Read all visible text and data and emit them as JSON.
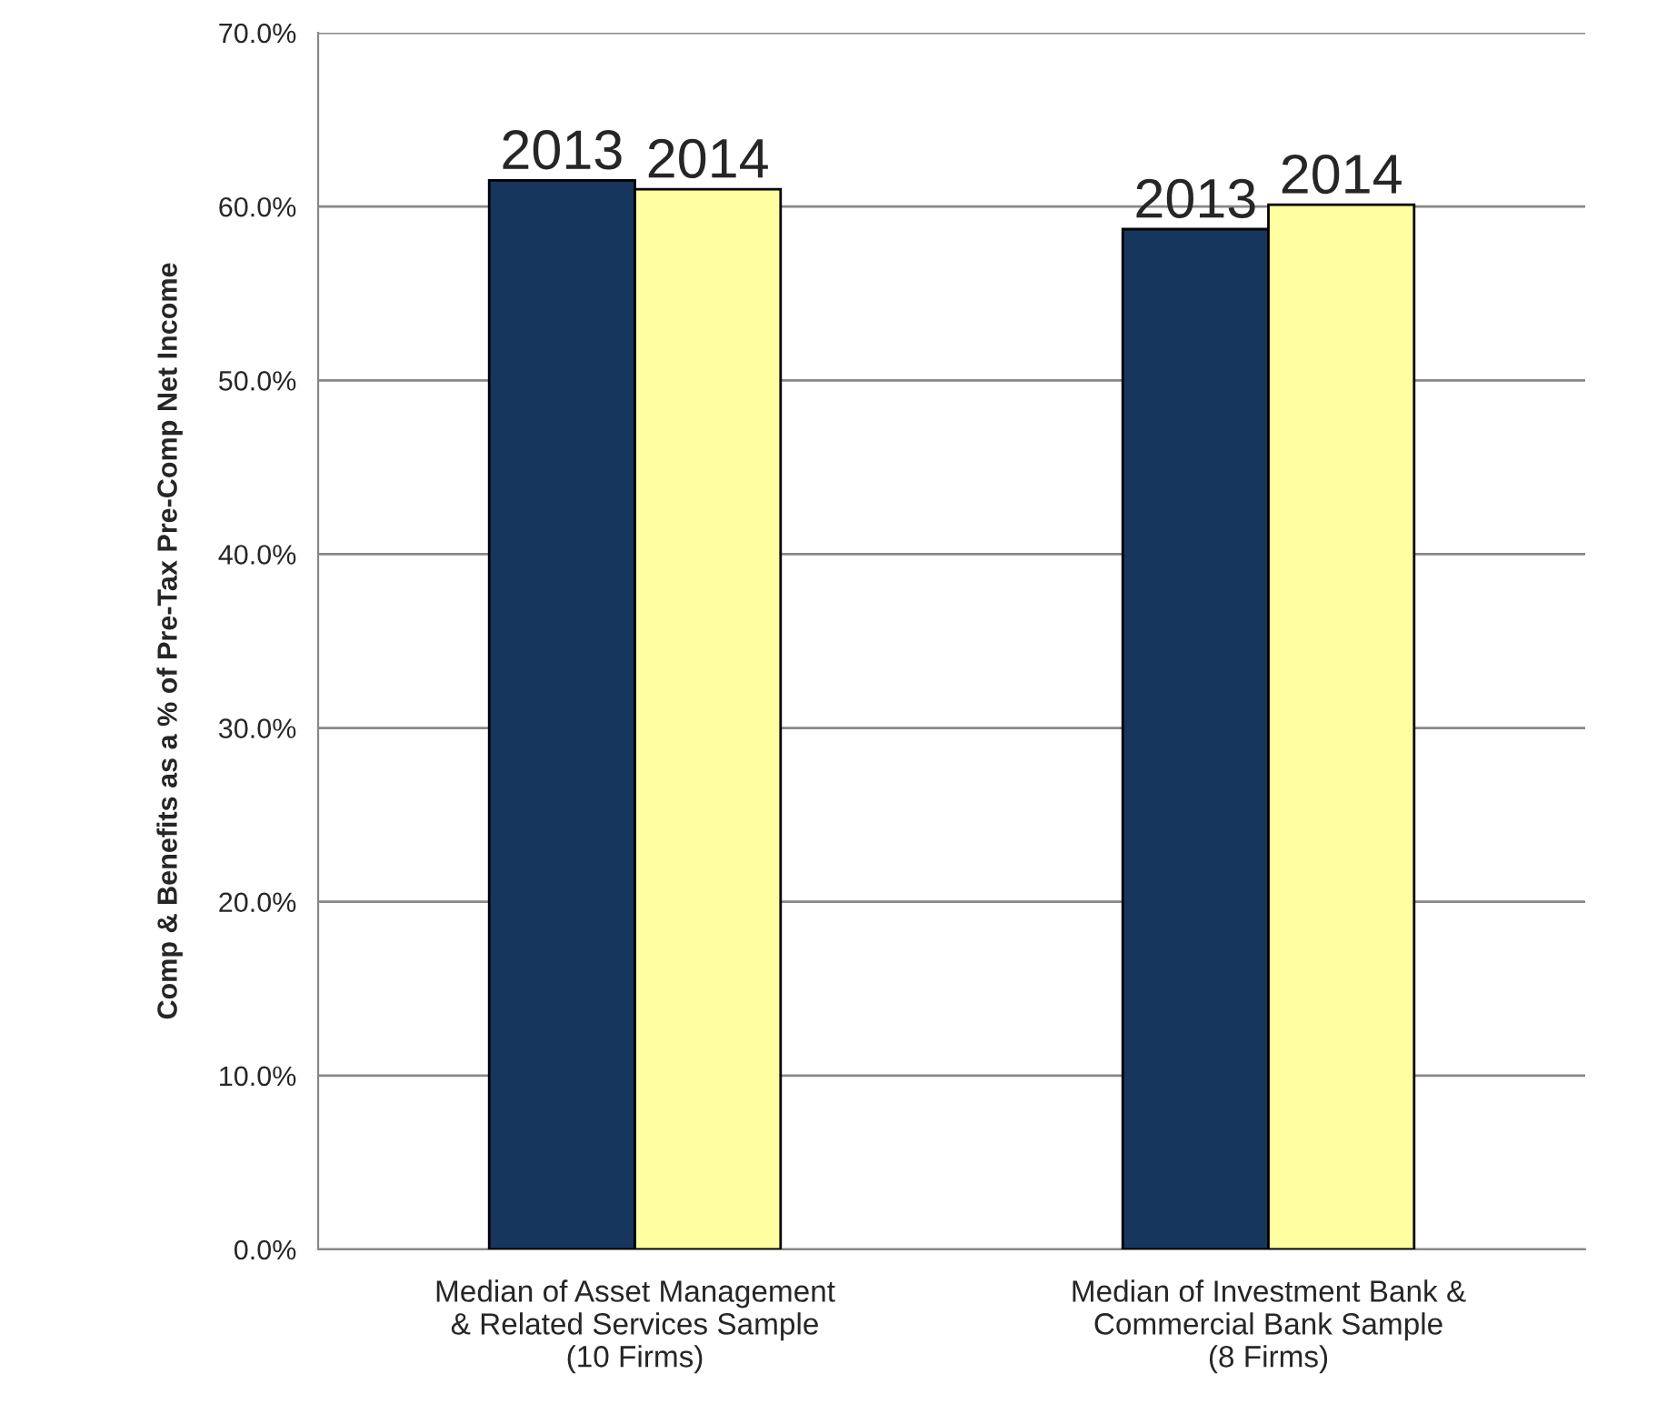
{
  "chart_data": {
    "type": "bar",
    "ylabel": "Comp & Benefits as a % of Pre-Tax Pre-Comp Net Income",
    "categories": [
      "Median of Asset Management\n& Related Services Sample\n(10 Firms)",
      "Median of Investment Bank &\nCommercial Bank Sample\n(8 Firms)"
    ],
    "series": [
      {
        "name": "2013",
        "color": "#17365d",
        "values": [
          61.5,
          58.7
        ]
      },
      {
        "name": "2014",
        "color": "#ffffa1",
        "values": [
          61.0,
          60.1
        ]
      }
    ],
    "ylim": [
      0,
      70
    ],
    "yticks": [
      {
        "value": 0,
        "label": "0.0%"
      },
      {
        "value": 10,
        "label": "10.0%"
      },
      {
        "value": 20,
        "label": "20.0%"
      },
      {
        "value": 30,
        "label": "30.0%"
      },
      {
        "value": 40,
        "label": "40.0%"
      },
      {
        "value": 50,
        "label": "50.0%"
      },
      {
        "value": 60,
        "label": "60.0%"
      },
      {
        "value": 70,
        "label": "70.0%"
      }
    ],
    "grid": "y",
    "legend": false
  }
}
